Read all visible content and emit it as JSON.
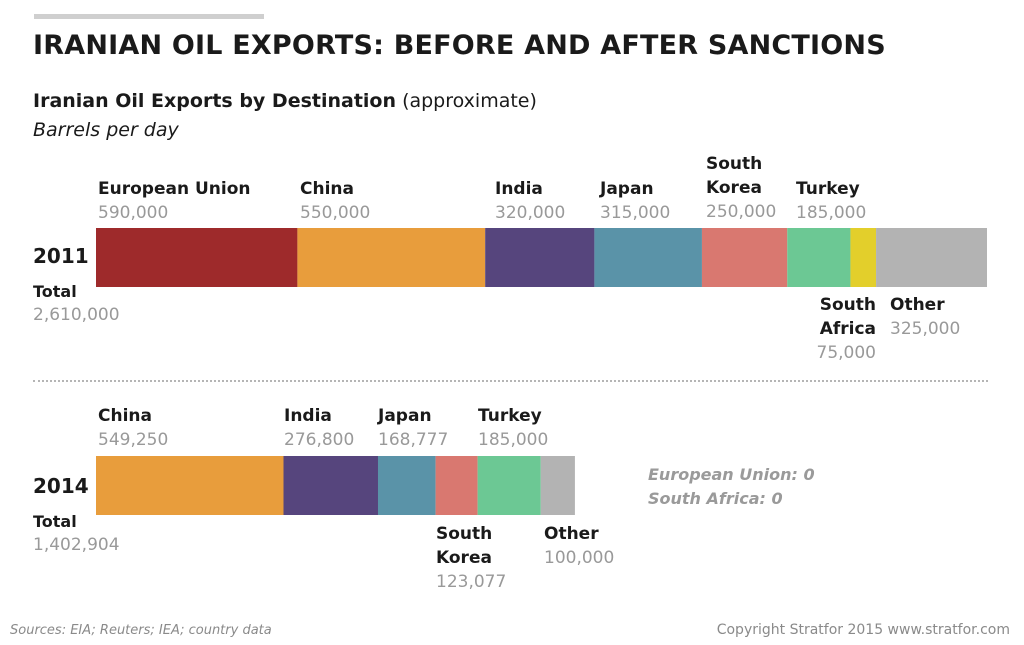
{
  "header": {
    "title": "IRANIAN OIL EXPORTS: BEFORE AND AFTER SANCTIONS",
    "subtitle_bold": "Iranian Oil Exports by Destination",
    "subtitle_note": "(approximate)",
    "units": "Barrels per day"
  },
  "chart_data": [
    {
      "type": "bar",
      "orientation": "horizontal-stacked",
      "year": "2011",
      "total_label": "Total",
      "total": "2,610,000",
      "series": [
        {
          "name": "European Union",
          "value": 590000,
          "label": "590,000",
          "color": "#9e2a2b"
        },
        {
          "name": "China",
          "value": 550000,
          "label": "550,000",
          "color": "#e89d3c"
        },
        {
          "name": "India",
          "value": 320000,
          "label": "320,000",
          "color": "#56457d"
        },
        {
          "name": "Japan",
          "value": 315000,
          "label": "315,000",
          "color": "#5a93a8"
        },
        {
          "name": "South Korea",
          "value": 250000,
          "label": "250,000",
          "color": "#d97870"
        },
        {
          "name": "Turkey",
          "value": 185000,
          "label": "185,000",
          "color": "#6cc894"
        },
        {
          "name": "South Africa",
          "value": 75000,
          "label": "75,000",
          "color": "#e3cf2b"
        },
        {
          "name": "Other",
          "value": 325000,
          "label": "325,000",
          "color": "#b3b3b3"
        }
      ]
    },
    {
      "type": "bar",
      "orientation": "horizontal-stacked",
      "year": "2014",
      "total_label": "Total",
      "total": "1,402,904",
      "series": [
        {
          "name": "China",
          "value": 549250,
          "label": "549,250",
          "color": "#e89d3c"
        },
        {
          "name": "India",
          "value": 276800,
          "label": "276,800",
          "color": "#56457d"
        },
        {
          "name": "Japan",
          "value": 168777,
          "label": "168,777",
          "color": "#5a93a8"
        },
        {
          "name": "South Korea",
          "value": 123077,
          "label": "123,077",
          "color": "#d97870"
        },
        {
          "name": "Turkey",
          "value": 185000,
          "label": "185,000",
          "color": "#6cc894"
        },
        {
          "name": "Other",
          "value": 100000,
          "label": "100,000",
          "color": "#b3b3b3"
        }
      ],
      "zero_destinations": [
        "European Union: 0",
        "South Africa: 0"
      ]
    }
  ],
  "footer": {
    "sources": "Sources: EIA; Reuters; IEA; country data",
    "copyright": "Copyright Stratfor 2015   www.stratfor.com"
  }
}
